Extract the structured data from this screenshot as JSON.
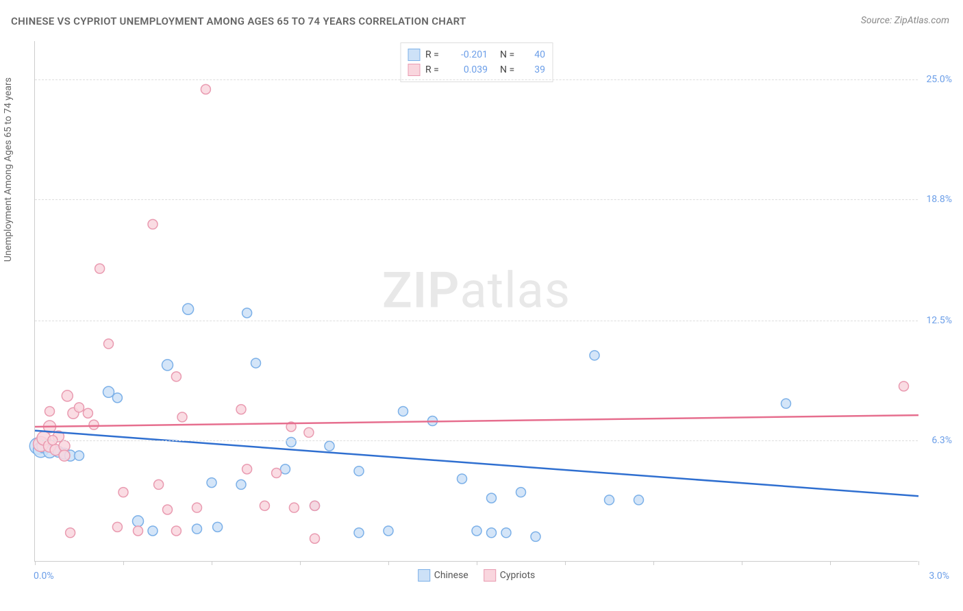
{
  "title": "CHINESE VS CYPRIOT UNEMPLOYMENT AMONG AGES 65 TO 74 YEARS CORRELATION CHART",
  "source": "Source: ZipAtlas.com",
  "watermark_a": "ZIP",
  "watermark_b": "atlas",
  "y_axis_label": "Unemployment Among Ages 65 to 74 years",
  "chart": {
    "type": "scatter",
    "xlim": [
      0.0,
      3.0
    ],
    "ylim": [
      0.0,
      27.0
    ],
    "x_tick_positions": [
      0.0,
      0.3,
      0.6,
      0.9,
      1.2,
      1.5,
      1.8,
      2.1,
      2.4,
      2.7,
      3.0
    ],
    "x_axis_min_label": "0.0%",
    "x_axis_max_label": "3.0%",
    "y_gridlines": [
      6.3,
      12.5,
      18.8,
      25.0
    ],
    "y_tick_labels": [
      "6.3%",
      "12.5%",
      "18.8%",
      "25.0%"
    ],
    "background_color": "#ffffff",
    "grid_color": "#dddddd",
    "axis_color": "#cccccc",
    "series": [
      {
        "name": "Chinese",
        "color_fill": "#cde1f7",
        "color_stroke": "#7bb0e8",
        "marker_radius_min": 6,
        "marker_radius_max": 12,
        "R": "-0.201",
        "N": "40",
        "trend": {
          "y_at_xmin": 6.8,
          "y_at_xmax": 3.4,
          "stroke": "#2f6fd0",
          "width": 2.5
        },
        "points": [
          {
            "x": 0.01,
            "y": 6.0,
            "r": 12
          },
          {
            "x": 0.02,
            "y": 5.8,
            "r": 11
          },
          {
            "x": 0.03,
            "y": 6.0,
            "r": 10
          },
          {
            "x": 0.05,
            "y": 5.7,
            "r": 9
          },
          {
            "x": 0.08,
            "y": 5.7,
            "r": 8
          },
          {
            "x": 0.1,
            "y": 5.6,
            "r": 8
          },
          {
            "x": 0.12,
            "y": 5.5,
            "r": 8
          },
          {
            "x": 0.25,
            "y": 8.8,
            "r": 8
          },
          {
            "x": 0.45,
            "y": 10.2,
            "r": 8
          },
          {
            "x": 0.52,
            "y": 13.1,
            "r": 8
          },
          {
            "x": 0.35,
            "y": 2.1,
            "r": 8
          },
          {
            "x": 0.4,
            "y": 1.6,
            "r": 7
          },
          {
            "x": 0.55,
            "y": 1.7,
            "r": 7
          },
          {
            "x": 0.6,
            "y": 4.1,
            "r": 7
          },
          {
            "x": 0.62,
            "y": 1.8,
            "r": 7
          },
          {
            "x": 0.7,
            "y": 4.0,
            "r": 7
          },
          {
            "x": 0.72,
            "y": 12.9,
            "r": 7
          },
          {
            "x": 0.75,
            "y": 10.3,
            "r": 7
          },
          {
            "x": 0.85,
            "y": 4.8,
            "r": 7
          },
          {
            "x": 0.87,
            "y": 6.2,
            "r": 7
          },
          {
            "x": 0.95,
            "y": 2.9,
            "r": 7
          },
          {
            "x": 1.0,
            "y": 6.0,
            "r": 7
          },
          {
            "x": 1.1,
            "y": 4.7,
            "r": 7
          },
          {
            "x": 1.1,
            "y": 1.5,
            "r": 7
          },
          {
            "x": 1.2,
            "y": 1.6,
            "r": 7
          },
          {
            "x": 1.25,
            "y": 7.8,
            "r": 7
          },
          {
            "x": 1.35,
            "y": 7.3,
            "r": 7
          },
          {
            "x": 1.45,
            "y": 4.3,
            "r": 7
          },
          {
            "x": 1.5,
            "y": 1.6,
            "r": 7
          },
          {
            "x": 1.55,
            "y": 1.5,
            "r": 7
          },
          {
            "x": 1.55,
            "y": 3.3,
            "r": 7
          },
          {
            "x": 1.6,
            "y": 1.5,
            "r": 7
          },
          {
            "x": 1.65,
            "y": 3.6,
            "r": 7
          },
          {
            "x": 1.7,
            "y": 1.3,
            "r": 7
          },
          {
            "x": 1.9,
            "y": 10.7,
            "r": 7
          },
          {
            "x": 2.05,
            "y": 3.2,
            "r": 7
          },
          {
            "x": 2.55,
            "y": 8.2,
            "r": 7
          },
          {
            "x": 1.95,
            "y": 3.2,
            "r": 7
          },
          {
            "x": 0.28,
            "y": 8.5,
            "r": 7
          },
          {
            "x": 0.15,
            "y": 5.5,
            "r": 7
          }
        ]
      },
      {
        "name": "Cypriots",
        "color_fill": "#f9d6de",
        "color_stroke": "#e99ab0",
        "marker_radius_min": 6,
        "marker_radius_max": 11,
        "R": "0.039",
        "N": "39",
        "trend": {
          "y_at_xmin": 7.0,
          "y_at_xmax": 7.6,
          "stroke": "#e66e8e",
          "width": 2.5
        },
        "points": [
          {
            "x": 0.02,
            "y": 6.1,
            "r": 11
          },
          {
            "x": 0.03,
            "y": 6.4,
            "r": 10
          },
          {
            "x": 0.05,
            "y": 6.0,
            "r": 9
          },
          {
            "x": 0.05,
            "y": 7.0,
            "r": 9
          },
          {
            "x": 0.07,
            "y": 5.8,
            "r": 8
          },
          {
            "x": 0.08,
            "y": 6.5,
            "r": 8
          },
          {
            "x": 0.1,
            "y": 6.0,
            "r": 8
          },
          {
            "x": 0.1,
            "y": 5.5,
            "r": 8
          },
          {
            "x": 0.11,
            "y": 8.6,
            "r": 8
          },
          {
            "x": 0.13,
            "y": 7.7,
            "r": 8
          },
          {
            "x": 0.15,
            "y": 8.0,
            "r": 7
          },
          {
            "x": 0.18,
            "y": 7.7,
            "r": 7
          },
          {
            "x": 0.2,
            "y": 7.1,
            "r": 7
          },
          {
            "x": 0.22,
            "y": 15.2,
            "r": 7
          },
          {
            "x": 0.25,
            "y": 11.3,
            "r": 7
          },
          {
            "x": 0.28,
            "y": 1.8,
            "r": 7
          },
          {
            "x": 0.3,
            "y": 3.6,
            "r": 7
          },
          {
            "x": 0.35,
            "y": 1.6,
            "r": 7
          },
          {
            "x": 0.4,
            "y": 17.5,
            "r": 7
          },
          {
            "x": 0.42,
            "y": 4.0,
            "r": 7
          },
          {
            "x": 0.45,
            "y": 2.7,
            "r": 7
          },
          {
            "x": 0.48,
            "y": 9.6,
            "r": 7
          },
          {
            "x": 0.48,
            "y": 1.6,
            "r": 7
          },
          {
            "x": 0.5,
            "y": 7.5,
            "r": 7
          },
          {
            "x": 0.58,
            "y": 24.5,
            "r": 7
          },
          {
            "x": 0.7,
            "y": 7.9,
            "r": 7
          },
          {
            "x": 0.72,
            "y": 4.8,
            "r": 7
          },
          {
            "x": 0.78,
            "y": 2.9,
            "r": 7
          },
          {
            "x": 0.82,
            "y": 4.6,
            "r": 7
          },
          {
            "x": 0.88,
            "y": 2.8,
            "r": 7
          },
          {
            "x": 0.87,
            "y": 7.0,
            "r": 7
          },
          {
            "x": 0.93,
            "y": 6.7,
            "r": 7
          },
          {
            "x": 0.95,
            "y": 2.9,
            "r": 7
          },
          {
            "x": 0.95,
            "y": 1.2,
            "r": 7
          },
          {
            "x": 2.95,
            "y": 9.1,
            "r": 7
          },
          {
            "x": 0.12,
            "y": 1.5,
            "r": 7
          },
          {
            "x": 0.05,
            "y": 7.8,
            "r": 7
          },
          {
            "x": 0.06,
            "y": 6.3,
            "r": 7
          },
          {
            "x": 0.55,
            "y": 2.8,
            "r": 7
          }
        ]
      }
    ]
  },
  "legend_top": {
    "rows": [
      {
        "swatch_fill": "#cde1f7",
        "swatch_stroke": "#7bb0e8",
        "r_label": "R =",
        "r_val": "-0.201",
        "n_label": "N =",
        "n_val": "40"
      },
      {
        "swatch_fill": "#f9d6de",
        "swatch_stroke": "#e99ab0",
        "r_label": "R =",
        "r_val": "0.039",
        "n_label": "N =",
        "n_val": "39"
      }
    ]
  },
  "legend_bottom": {
    "items": [
      {
        "swatch_fill": "#cde1f7",
        "swatch_stroke": "#7bb0e8",
        "label": "Chinese"
      },
      {
        "swatch_fill": "#f9d6de",
        "swatch_stroke": "#e99ab0",
        "label": "Cypriots"
      }
    ]
  }
}
